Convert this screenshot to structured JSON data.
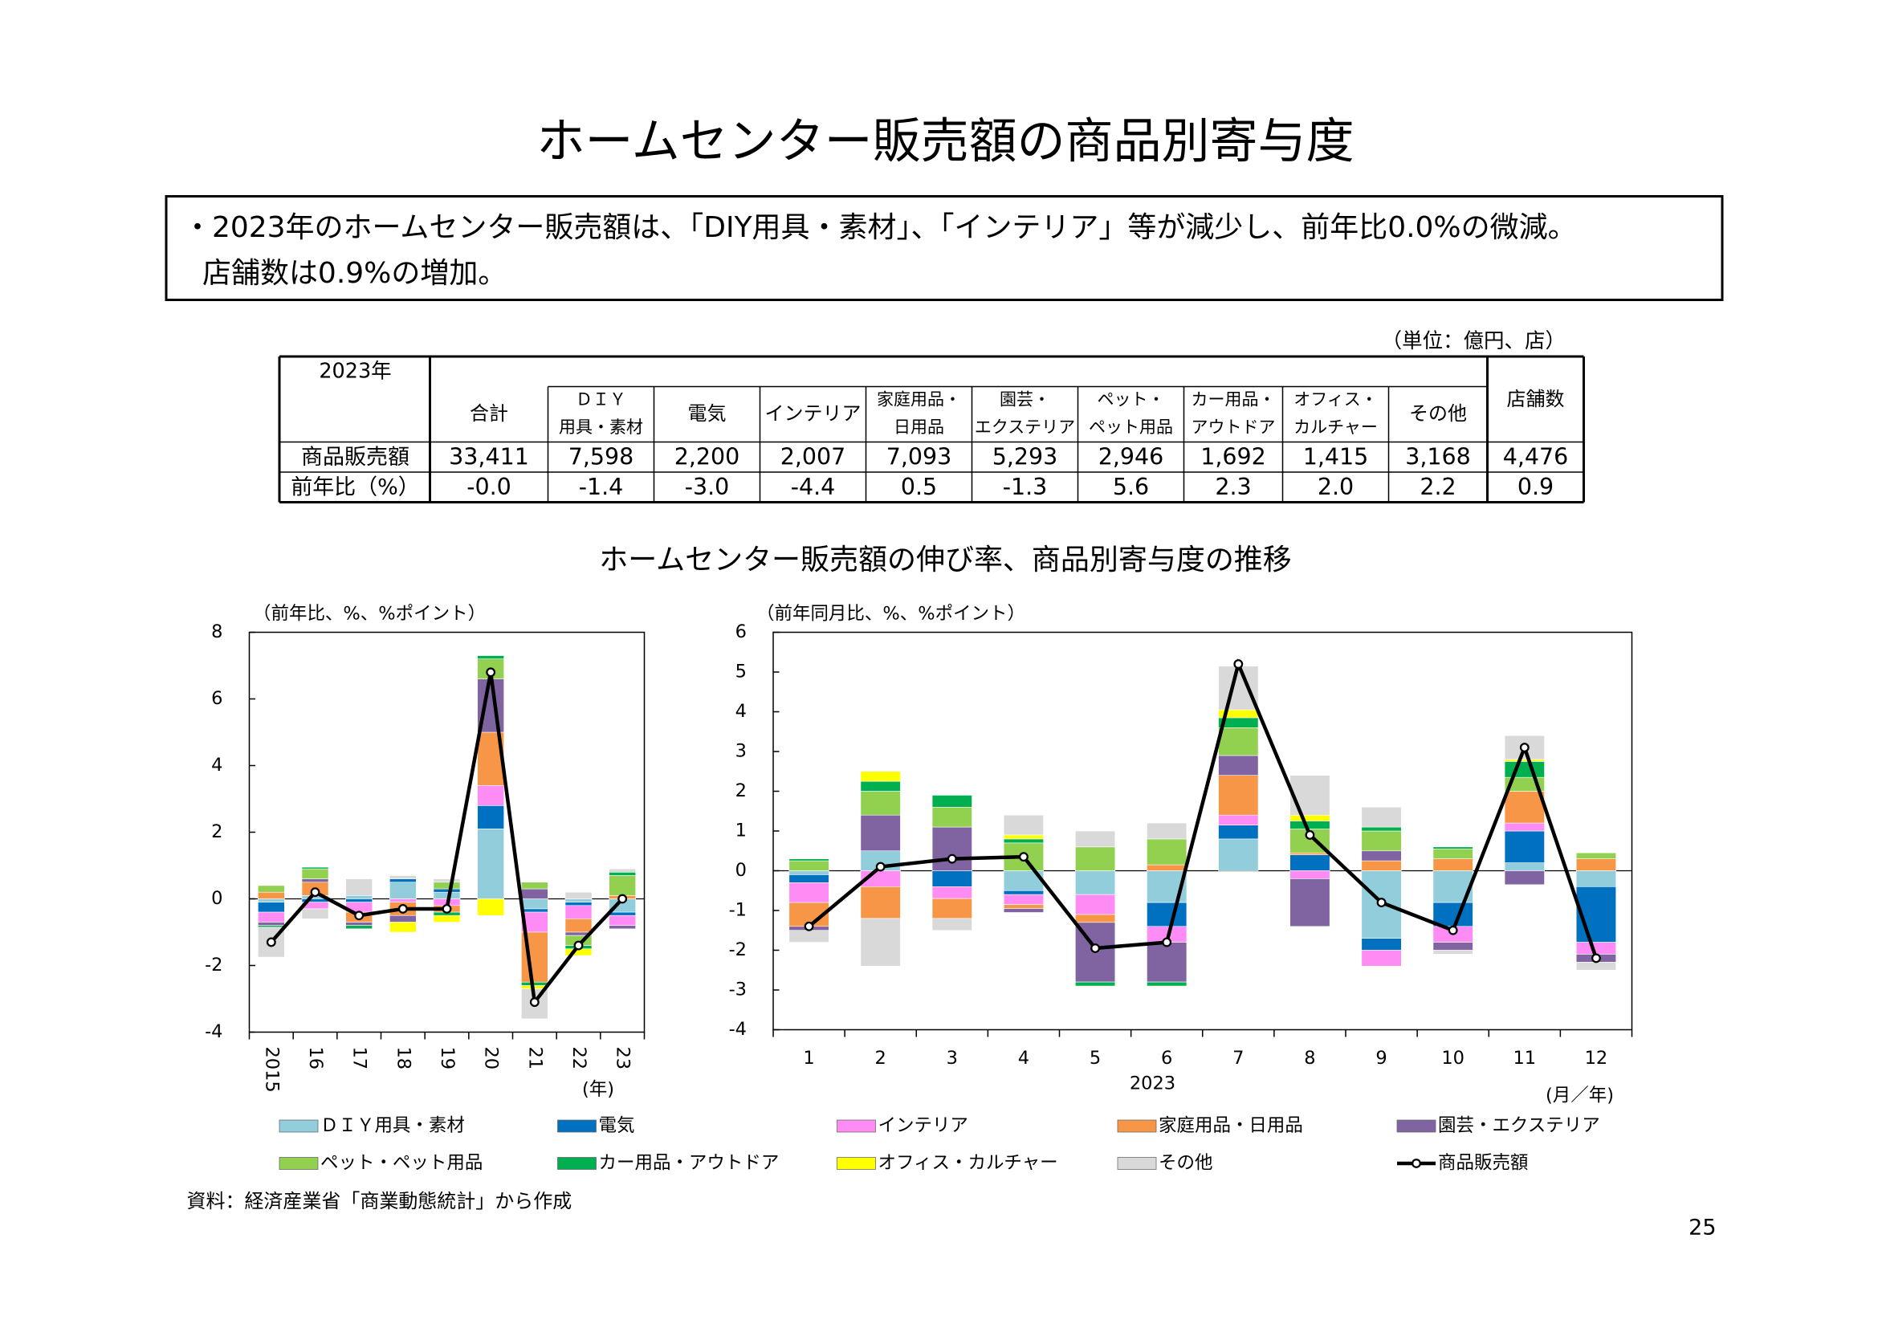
{
  "header": {
    "title": "ホームセンター販売額の商品別寄与度"
  },
  "summary": [
    "・2023年のホームセンター販売額は、「DIY用具・素材」、「インテリア」等が減少し、前年比0.0%の微減。",
    "店舗数は0.9%の増加。"
  ],
  "table": {
    "unit": "（単位：億円、店）",
    "corner": "2023年",
    "columns": [
      [
        "合計"
      ],
      [
        "ＤＩＹ",
        "用具・素材"
      ],
      [
        "電気"
      ],
      [
        "インテリア"
      ],
      [
        "家庭用品・",
        "日用品"
      ],
      [
        "園芸・",
        "エクステリア"
      ],
      [
        "ペット・",
        "ペット用品"
      ],
      [
        "カー用品・",
        "アウトドア"
      ],
      [
        "オフィス・",
        "カルチャー"
      ],
      [
        "その他"
      ],
      [
        "店舗数"
      ]
    ],
    "rows": [
      {
        "label": "商品販売額",
        "cells": [
          "33,411",
          "7,598",
          "2,200",
          "2,007",
          "7,093",
          "5,293",
          "2,946",
          "1,692",
          "1,415",
          "3,168",
          "4,476"
        ]
      },
      {
        "label": "前年比（%）",
        "cells": [
          "-0.0",
          "-1.4",
          "-3.0",
          "-4.4",
          "0.5",
          "-1.3",
          "5.6",
          "2.3",
          "2.0",
          "2.2",
          "0.9"
        ]
      }
    ]
  },
  "charts_title": "ホームセンター販売額の伸び率、商品別寄与度の推移",
  "chart_data": [
    {
      "type": "stacked_bar",
      "ylabel": "（前年比、%、%ポイント）",
      "xunit": "(年)",
      "categories": [
        "2015",
        "16",
        "17",
        "18",
        "19",
        "20",
        "21",
        "22",
        "23"
      ],
      "ylim": [
        -4,
        8
      ],
      "yticks": [
        -4,
        -2,
        0,
        2,
        4,
        6,
        8
      ],
      "series": [
        {
          "name": "ＤＩＹ用具・素材",
          "color": "#92cddc",
          "values": [
            -0.1,
            0.1,
            0.1,
            0.5,
            0.2,
            2.1,
            -0.3,
            -0.1,
            -0.4
          ]
        },
        {
          "name": "電気",
          "color": "#0070c0",
          "values": [
            -0.3,
            -0.1,
            -0.1,
            0.1,
            0.1,
            0.7,
            -0.1,
            -0.1,
            -0.1
          ]
        },
        {
          "name": "インテリア",
          "color": "#ff8bf5",
          "values": [
            -0.3,
            -0.2,
            -0.3,
            -0.1,
            -0.2,
            0.6,
            -0.6,
            -0.4,
            -0.3
          ]
        },
        {
          "name": "家庭用品・日用品",
          "color": "#f79646",
          "values": [
            0.2,
            0.4,
            -0.3,
            -0.4,
            -0.2,
            1.6,
            -1.5,
            -0.4,
            0.1
          ]
        },
        {
          "name": "園芸・エクステリア",
          "color": "#8064a2",
          "values": [
            -0.1,
            0.1,
            -0.1,
            -0.2,
            0.0,
            1.6,
            0.3,
            -0.1,
            -0.1
          ]
        },
        {
          "name": "ペット・ペット用品",
          "color": "#92d050",
          "values": [
            0.2,
            0.3,
            0.0,
            0.0,
            0.2,
            0.6,
            0.2,
            -0.3,
            0.6
          ]
        },
        {
          "name": "カー用品・アウトドア",
          "color": "#00b050",
          "values": [
            -0.05,
            0.05,
            -0.1,
            0.0,
            -0.1,
            0.1,
            -0.1,
            -0.1,
            0.1
          ]
        },
        {
          "name": "オフィス・カルチャー",
          "color": "#ffff00",
          "values": [
            0.0,
            0.0,
            0.0,
            -0.3,
            -0.2,
            -0.5,
            -0.1,
            -0.2,
            0.0
          ]
        },
        {
          "name": "その他",
          "color": "#d9d9d9",
          "values": [
            -0.9,
            -0.3,
            0.5,
            0.1,
            0.1,
            0.0,
            -0.9,
            0.2,
            0.1
          ]
        },
        {
          "name": "商品販売額",
          "type": "line",
          "color": "#000000",
          "values": [
            -1.3,
            0.2,
            -0.5,
            -0.3,
            -0.3,
            6.8,
            -3.1,
            -1.4,
            0.0
          ]
        }
      ]
    },
    {
      "type": "stacked_bar",
      "ylabel": "（前年同月比、%、%ポイント）",
      "xsublabel": "2023",
      "xunit": "(月／年)",
      "categories": [
        "1",
        "2",
        "3",
        "4",
        "5",
        "6",
        "7",
        "8",
        "9",
        "10",
        "11",
        "12"
      ],
      "ylim": [
        -4,
        6
      ],
      "yticks": [
        -4,
        -3,
        -2,
        -1,
        0,
        1,
        2,
        3,
        4,
        5,
        6
      ],
      "series": [
        {
          "name": "ＤＩＹ用具・素材",
          "color": "#92cddc",
          "values": [
            -0.1,
            0.5,
            0.0,
            -0.5,
            -0.6,
            -0.8,
            0.8,
            0.0,
            -1.7,
            -0.8,
            0.2,
            -0.4
          ]
        },
        {
          "name": "電気",
          "color": "#0070c0",
          "values": [
            -0.2,
            0.0,
            -0.4,
            -0.1,
            0.0,
            -0.6,
            0.35,
            0.4,
            -0.3,
            -0.6,
            0.8,
            -1.4
          ]
        },
        {
          "name": "インテリア",
          "color": "#ff8bf5",
          "values": [
            -0.5,
            -0.4,
            -0.3,
            -0.25,
            -0.5,
            -0.4,
            0.25,
            -0.2,
            -0.4,
            -0.4,
            0.2,
            -0.3
          ]
        },
        {
          "name": "家庭用品・日用品",
          "color": "#f79646",
          "values": [
            -0.6,
            -0.8,
            -0.5,
            -0.1,
            -0.2,
            0.15,
            1.0,
            0.05,
            0.25,
            0.3,
            0.8,
            0.3
          ]
        },
        {
          "name": "園芸・エクステリア",
          "color": "#8064a2",
          "values": [
            -0.1,
            0.9,
            1.1,
            -0.1,
            -1.5,
            -1.0,
            0.5,
            -1.2,
            0.25,
            -0.2,
            -0.35,
            -0.2
          ]
        },
        {
          "name": "ペット・ペット用品",
          "color": "#92d050",
          "values": [
            0.25,
            0.6,
            0.5,
            0.7,
            0.6,
            0.65,
            0.7,
            0.6,
            0.5,
            0.25,
            0.35,
            0.15
          ]
        },
        {
          "name": "カー用品・アウトドア",
          "color": "#00b050",
          "values": [
            0.05,
            0.25,
            0.3,
            0.1,
            -0.1,
            -0.1,
            0.25,
            0.2,
            0.1,
            0.05,
            0.4,
            0.0
          ]
        },
        {
          "name": "オフィス・カルチャー",
          "color": "#ffff00",
          "values": [
            0.0,
            0.25,
            0.0,
            0.1,
            0.0,
            0.0,
            0.2,
            0.15,
            0.0,
            0.0,
            0.05,
            0.0
          ]
        },
        {
          "name": "その他",
          "color": "#d9d9d9",
          "values": [
            -0.3,
            -1.2,
            -0.3,
            0.5,
            0.4,
            0.4,
            1.1,
            1.0,
            0.5,
            -0.1,
            0.6,
            -0.2
          ]
        },
        {
          "name": "商品販売額",
          "type": "line",
          "color": "#000000",
          "values": [
            -1.4,
            0.1,
            0.3,
            0.35,
            -1.95,
            -1.8,
            5.2,
            0.9,
            -0.8,
            -1.5,
            3.1,
            -2.2
          ]
        }
      ]
    }
  ],
  "source": "資料：経済産業省「商業動態統計」から作成",
  "page_number": "25"
}
